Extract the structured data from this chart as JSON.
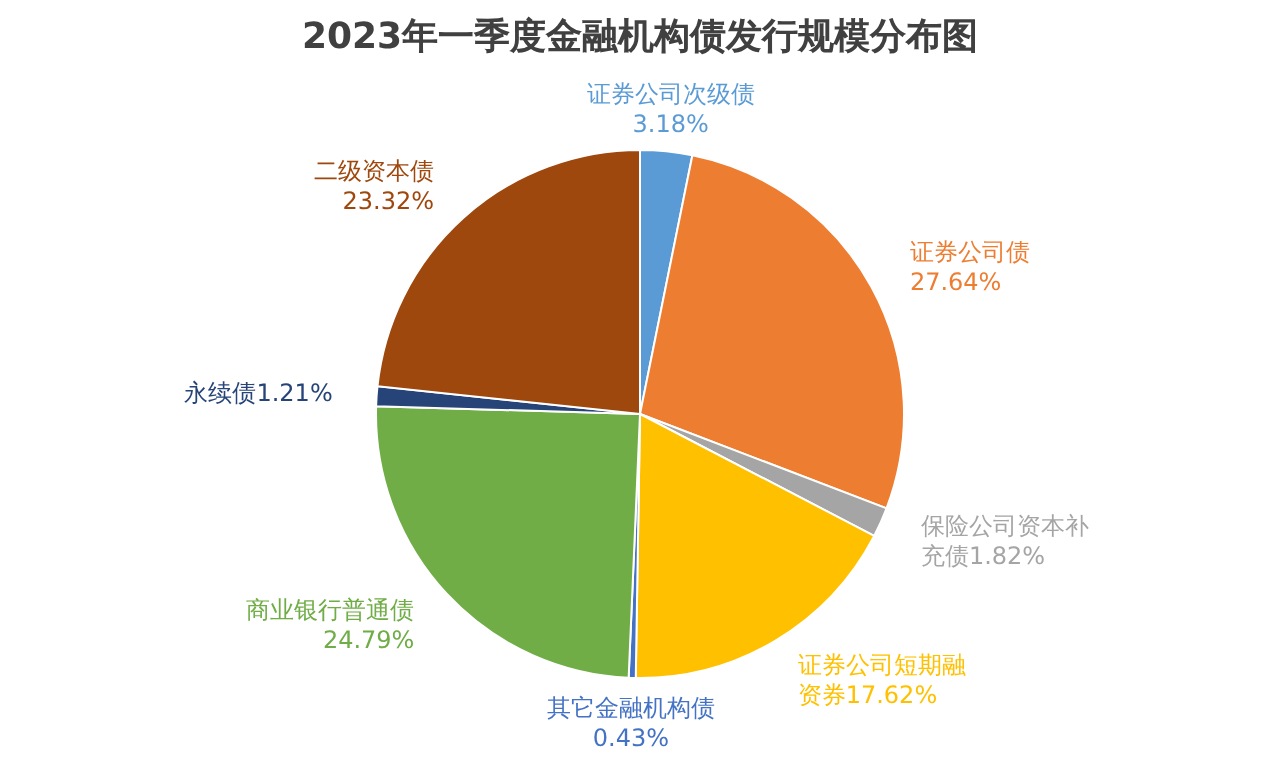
{
  "chart_data": {
    "type": "pie",
    "title": "2023年一季度金融机构债发行规模分布图",
    "categories": [
      "证券公司次级债",
      "证券公司债",
      "保险公司资本补充债",
      "证券公司短期融资券",
      "其它金融机构债",
      "商业银行普通债",
      "永续债",
      "二级资本债"
    ],
    "values": [
      3.18,
      27.64,
      1.82,
      17.62,
      0.43,
      24.79,
      1.21,
      23.32
    ],
    "colors": [
      "#5b9bd5",
      "#ed7d31",
      "#a5a5a5",
      "#ffc000",
      "#4472c4",
      "#70ad47",
      "#264478",
      "#9e480e"
    ],
    "value_labels": [
      "3.18%",
      "27.64%",
      "1.82%",
      "17.62%",
      "0.43%",
      "24.79%",
      "1.21%",
      "23.32%"
    ]
  }
}
